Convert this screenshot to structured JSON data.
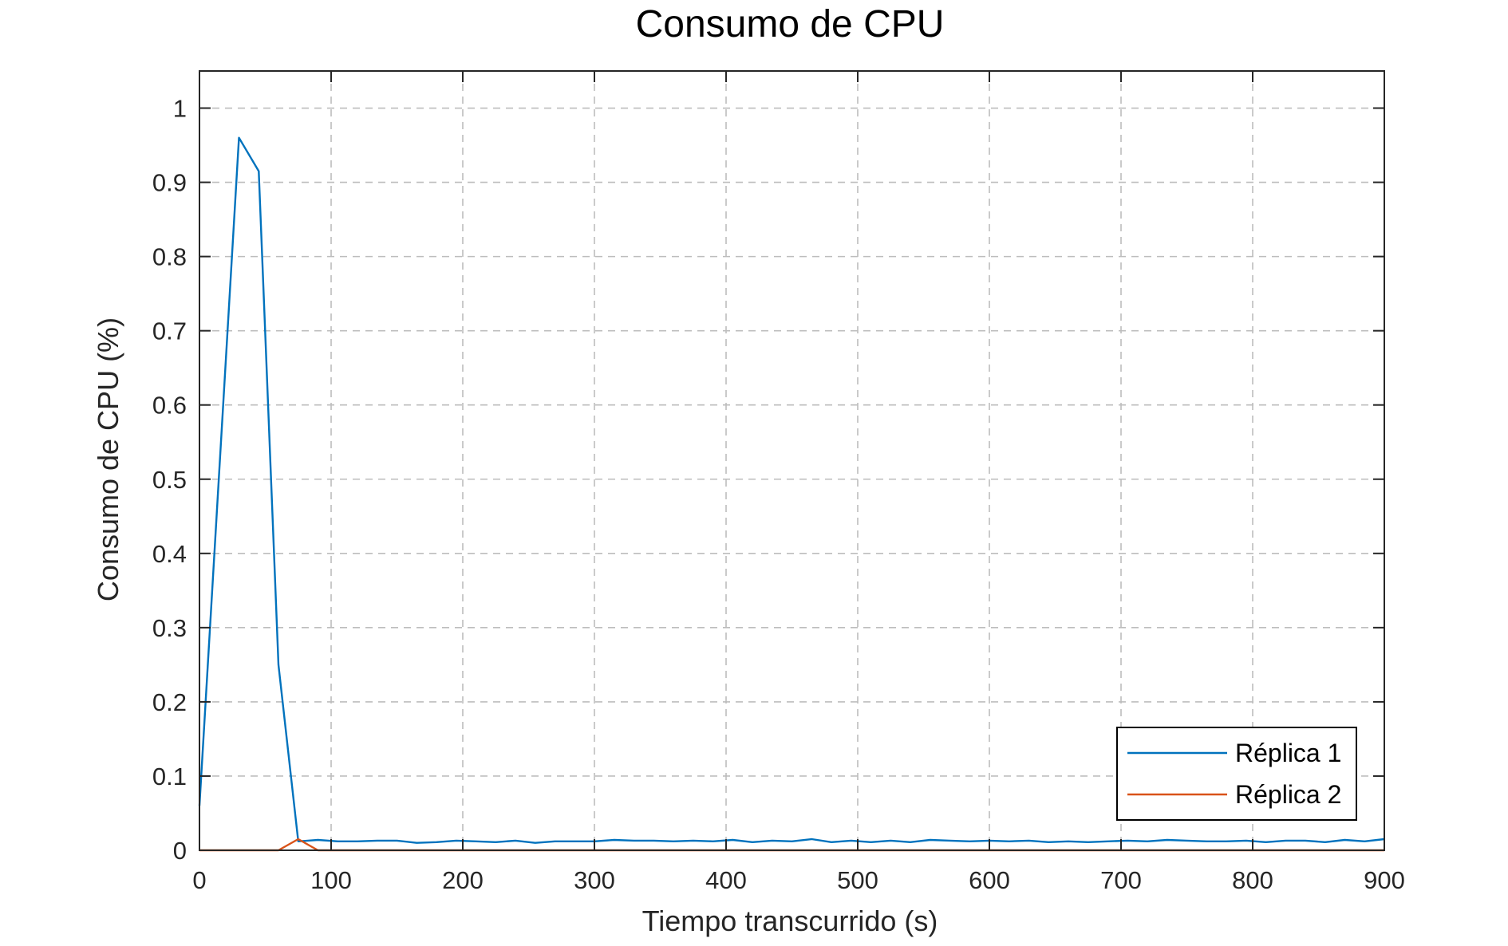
{
  "chart_data": {
    "type": "line",
    "title": "Consumo de CPU",
    "xlabel": "Tiempo transcurrido (s)",
    "ylabel": "Consumo de CPU (%)",
    "xlim": [
      0,
      900
    ],
    "ylim": [
      0,
      1.05
    ],
    "xticks": [
      0,
      100,
      200,
      300,
      400,
      500,
      600,
      700,
      800,
      900
    ],
    "yticks": [
      0,
      0.1,
      0.2,
      0.3,
      0.4,
      0.5,
      0.6,
      0.7,
      0.8,
      0.9,
      1
    ],
    "ytick_labels": [
      "0",
      "0.1",
      "0.2",
      "0.3",
      "0.4",
      "0.5",
      "0.6",
      "0.7",
      "0.8",
      "0.9",
      "1"
    ],
    "grid": true,
    "legend_position": "bottom-right",
    "series": [
      {
        "name": "Réplica 1",
        "color": "#0072bd",
        "x": [
          0,
          30,
          45,
          60,
          75,
          90,
          105,
          120,
          135,
          150,
          165,
          180,
          195,
          210,
          225,
          240,
          255,
          270,
          285,
          300,
          315,
          330,
          345,
          360,
          375,
          390,
          405,
          420,
          435,
          450,
          465,
          480,
          495,
          510,
          525,
          540,
          555,
          570,
          585,
          600,
          615,
          630,
          645,
          660,
          675,
          690,
          705,
          720,
          735,
          750,
          765,
          780,
          795,
          810,
          825,
          840,
          855,
          870,
          885,
          900
        ],
        "y": [
          0.06,
          0.96,
          0.915,
          0.25,
          0.012,
          0.014,
          0.012,
          0.012,
          0.013,
          0.013,
          0.01,
          0.011,
          0.013,
          0.012,
          0.011,
          0.013,
          0.01,
          0.012,
          0.012,
          0.012,
          0.014,
          0.013,
          0.013,
          0.012,
          0.013,
          0.012,
          0.014,
          0.011,
          0.013,
          0.012,
          0.015,
          0.011,
          0.013,
          0.011,
          0.013,
          0.011,
          0.014,
          0.013,
          0.012,
          0.013,
          0.012,
          0.013,
          0.011,
          0.012,
          0.011,
          0.012,
          0.013,
          0.012,
          0.014,
          0.013,
          0.012,
          0.012,
          0.013,
          0.011,
          0.013,
          0.013,
          0.011,
          0.014,
          0.012,
          0.015
        ]
      },
      {
        "name": "Réplica 2",
        "color": "#d95319",
        "x": [
          0,
          15,
          30,
          45,
          60,
          75,
          90,
          120,
          150,
          200,
          300,
          400,
          500,
          600,
          700,
          800,
          900
        ],
        "y": [
          0,
          0,
          0,
          0,
          0,
          0.015,
          0,
          0,
          0,
          0,
          0,
          0,
          0,
          0,
          0,
          0,
          0
        ]
      }
    ]
  }
}
